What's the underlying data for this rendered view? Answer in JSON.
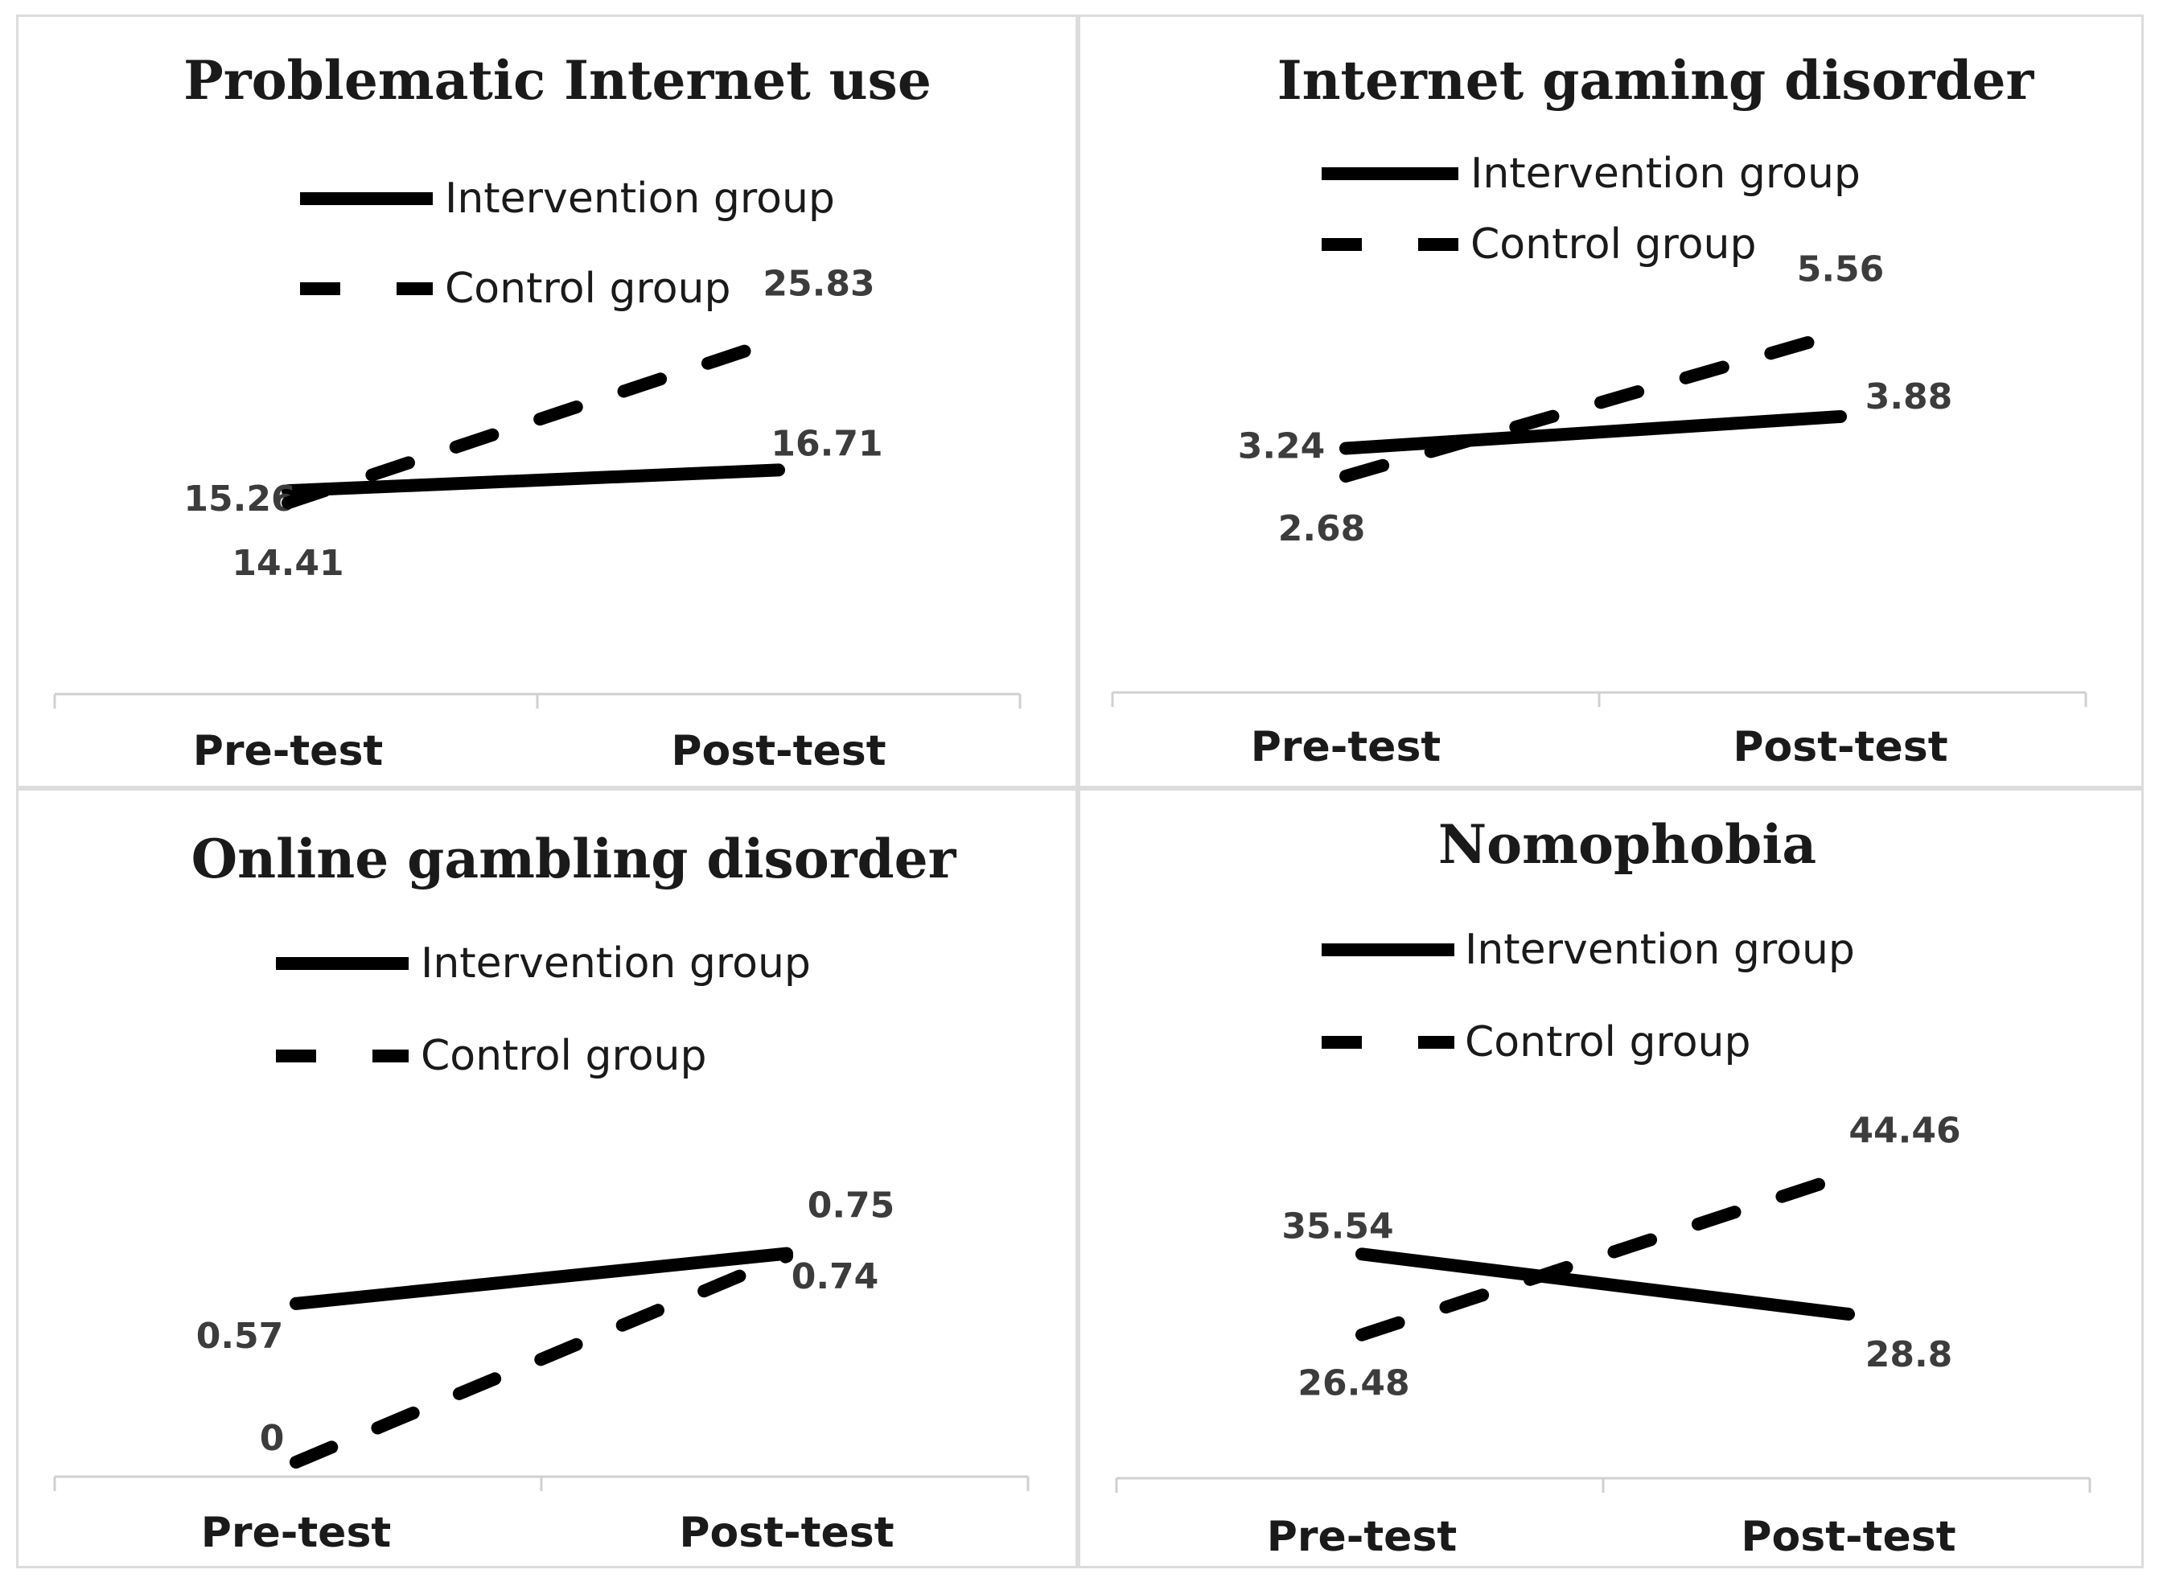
{
  "chart_data": [
    {
      "type": "line",
      "title": "Problematic Internet use",
      "categories": [
        "Pre-test",
        "Post-test"
      ],
      "legend": [
        "Intervention group",
        "Control group"
      ],
      "series": [
        {
          "name": "Intervention group",
          "style": "solid",
          "values": [
            15.26,
            16.71
          ],
          "labels": [
            "15.26",
            "16.71"
          ]
        },
        {
          "name": "Control group",
          "style": "dashed",
          "values": [
            14.41,
            25.83
          ],
          "labels": [
            "14.41",
            "25.83"
          ]
        }
      ],
      "ylim": [
        0,
        40
      ],
      "xlabel": "",
      "ylabel": ""
    },
    {
      "type": "line",
      "title": "Internet gaming disorder",
      "categories": [
        "Pre-test",
        "Post-test"
      ],
      "legend": [
        "Intervention group",
        "Control group"
      ],
      "series": [
        {
          "name": "Intervention group",
          "style": "solid",
          "values": [
            3.24,
            3.88
          ],
          "labels": [
            "3.24",
            "3.88"
          ]
        },
        {
          "name": "Control group",
          "style": "dashed",
          "values": [
            2.68,
            5.56
          ],
          "labels": [
            "2.68",
            "5.56"
          ]
        }
      ],
      "ylim": [
        -2,
        9.5
      ],
      "xlabel": "",
      "ylabel": ""
    },
    {
      "type": "line",
      "title": "Online gambling disorder",
      "categories": [
        "Pre-test",
        "Post-test"
      ],
      "legend": [
        "Intervention group",
        "Control group"
      ],
      "series": [
        {
          "name": "Intervention group",
          "style": "solid",
          "values": [
            0.57,
            0.75
          ],
          "labels": [
            "0.57",
            "0.75"
          ]
        },
        {
          "name": "Control group",
          "style": "dashed",
          "values": [
            0,
            0.74
          ],
          "labels": [
            "0",
            "0.74"
          ]
        }
      ],
      "ylim": [
        0,
        1.2
      ],
      "xlabel": "",
      "ylabel": ""
    },
    {
      "type": "line",
      "title": "Nomophobia",
      "categories": [
        "Pre-test",
        "Post-test"
      ],
      "legend": [
        "Intervention group",
        "Control group"
      ],
      "series": [
        {
          "name": "Intervention group",
          "style": "solid",
          "values": [
            35.54,
            28.8
          ],
          "labels": [
            "35.54",
            "28.8"
          ]
        },
        {
          "name": "Control group",
          "style": "dashed",
          "values": [
            26.48,
            44.46
          ],
          "labels": [
            "26.48",
            "44.46"
          ]
        }
      ],
      "ylim": [
        0,
        65
      ],
      "xlabel": "",
      "ylabel": ""
    }
  ]
}
